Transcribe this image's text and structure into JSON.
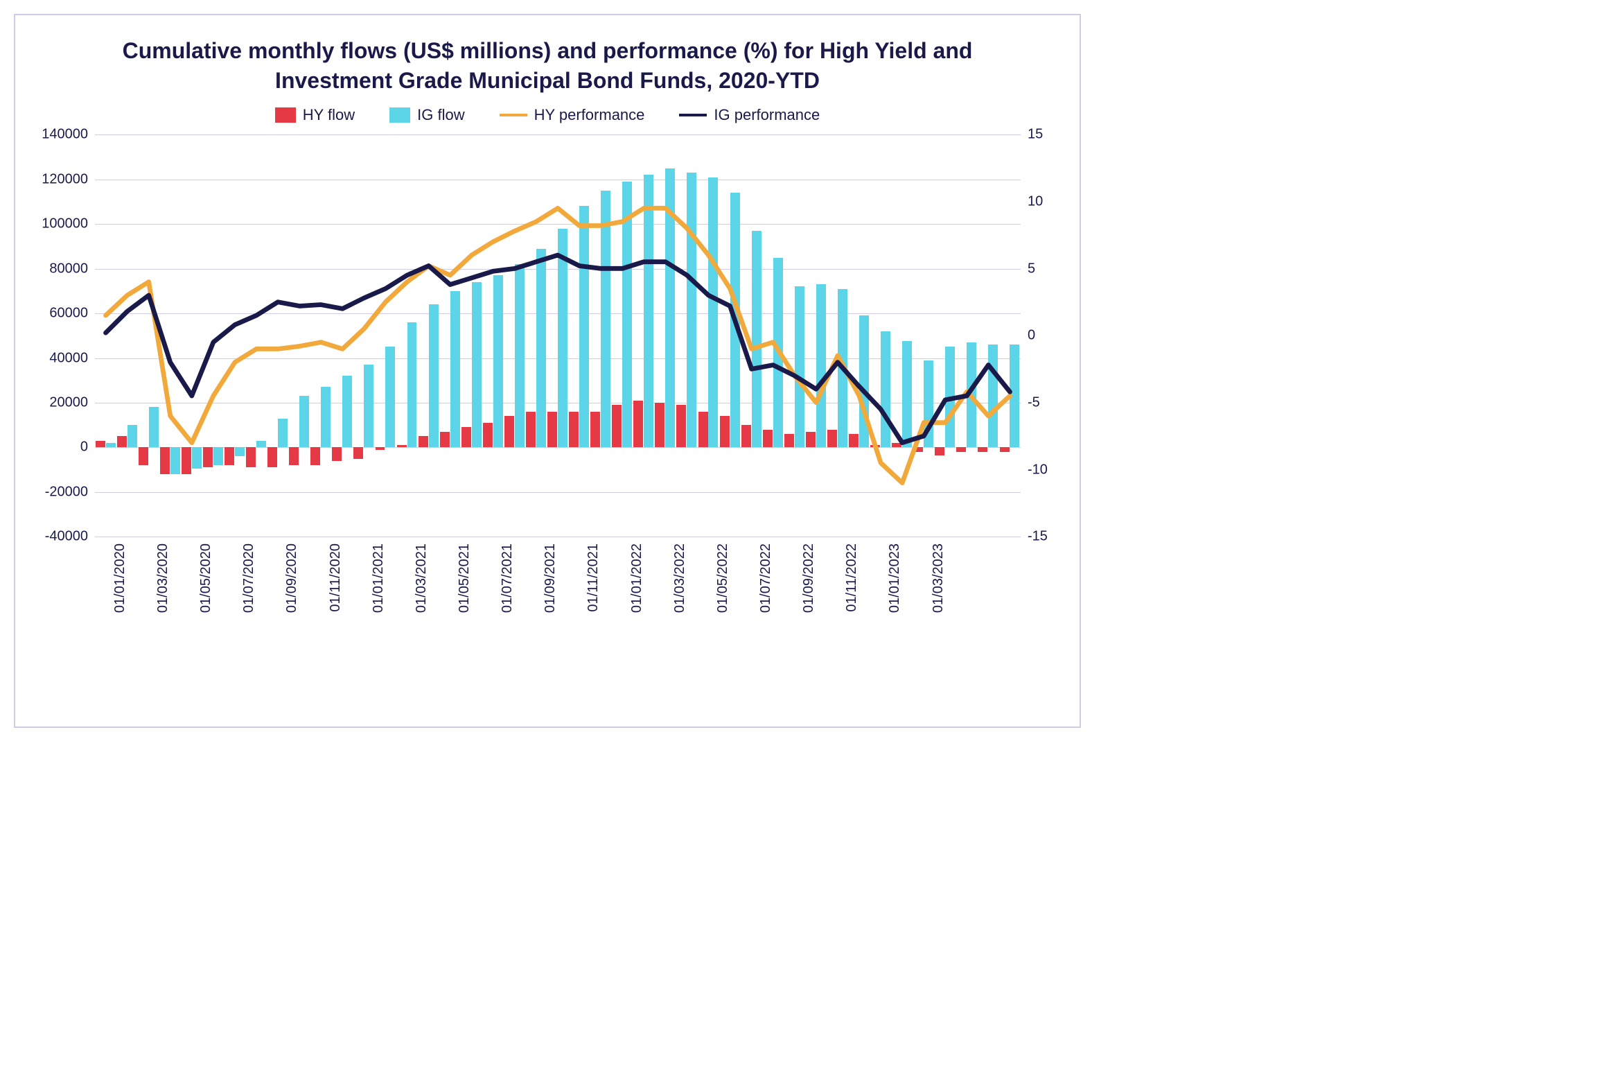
{
  "chart": {
    "type": "bar+line",
    "title": "Cumulative monthly flows (US$ millions) and performance (%) for High Yield and Investment Grade Municipal Bond Funds, 2020-YTD",
    "title_fontsize": 32,
    "title_color": "#1a1a4a",
    "background_color": "#ffffff",
    "border_color": "#d0cce8",
    "grid_color": "#d0cce8",
    "axis_label_color": "#1a1a4a",
    "axis_label_fontsize": 20,
    "legend_fontsize": 22,
    "y_left": {
      "min": -40000,
      "max": 140000,
      "tick_step": 20000
    },
    "y_right": {
      "min": -15,
      "max": 15,
      "tick_step": 5
    },
    "x_labels": [
      "01/01/2020",
      "01/03/2020",
      "01/05/2020",
      "01/07/2020",
      "01/09/2020",
      "01/11/2020",
      "01/01/2021",
      "01/03/2021",
      "01/05/2021",
      "01/07/2021",
      "01/09/2021",
      "01/11/2021",
      "01/01/2022",
      "01/03/2022",
      "01/05/2022",
      "01/07/2022",
      "01/09/2022",
      "01/11/2022",
      "01/01/2023",
      "01/03/2023"
    ],
    "x_label_every": 2,
    "series": {
      "hy_flow": {
        "label": "HY flow",
        "type": "bar",
        "color": "#e63946",
        "axis": "left",
        "values": [
          3000,
          5000,
          -8000,
          -12000,
          -12000,
          -9000,
          -8000,
          -9000,
          -9000,
          -8000,
          -8000,
          -6000,
          -5000,
          -1000,
          1000,
          5000,
          7000,
          9000,
          11000,
          14000,
          16000,
          16000,
          16000,
          16000,
          19000,
          21000,
          20000,
          19000,
          16000,
          14000,
          10000,
          8000,
          6000,
          7000,
          8000,
          6000,
          1000,
          2000,
          -2000,
          -3500,
          -2000,
          -2000,
          -2000
        ]
      },
      "ig_flow": {
        "label": "IG flow",
        "type": "bar",
        "color": "#5dd5e8",
        "axis": "left",
        "values": [
          2000,
          10000,
          18000,
          -12000,
          -9500,
          -8000,
          -4000,
          3000,
          13000,
          23000,
          27000,
          32000,
          37000,
          45000,
          56000,
          64000,
          70000,
          74000,
          77000,
          82000,
          89000,
          98000,
          108000,
          115000,
          119000,
          122000,
          125000,
          123000,
          121000,
          114000,
          97000,
          85000,
          72000,
          73000,
          71000,
          59000,
          52000,
          47500,
          39000,
          45000,
          47000,
          46000,
          46000
        ]
      },
      "hy_perf": {
        "label": "HY performance",
        "type": "line",
        "color": "#f2a93b",
        "line_width": 4,
        "axis": "right",
        "values": [
          1.5,
          3.0,
          4.0,
          -6.0,
          -8.0,
          -4.5,
          -2.0,
          -1.0,
          -1.0,
          -0.8,
          -0.5,
          -1.0,
          0.5,
          2.5,
          4.0,
          5.2,
          4.5,
          6.0,
          7.0,
          7.8,
          8.5,
          9.5,
          8.2,
          8.2,
          8.5,
          9.5,
          9.5,
          8.0,
          6.0,
          3.5,
          -1.0,
          -0.5,
          -3.0,
          -5.0,
          -1.5,
          -4.5,
          -9.5,
          -11.0,
          -6.5,
          -6.5,
          -4.2,
          -6.0,
          -4.5
        ]
      },
      "ig_perf": {
        "label": "IG performance",
        "type": "line",
        "color": "#1a1a4a",
        "line_width": 4,
        "axis": "right",
        "values": [
          0.2,
          1.8,
          3.0,
          -2.0,
          -4.5,
          -0.5,
          0.8,
          1.5,
          2.5,
          2.2,
          2.3,
          2.0,
          2.8,
          3.5,
          4.5,
          5.2,
          3.8,
          4.3,
          4.8,
          5.0,
          5.5,
          6.0,
          5.2,
          5.0,
          5.0,
          5.5,
          5.5,
          4.5,
          3.0,
          2.2,
          -2.5,
          -2.2,
          -3.0,
          -4.0,
          -2.0,
          -3.8,
          -5.5,
          -8.0,
          -7.5,
          -4.8,
          -4.5,
          -2.2,
          -4.2
        ]
      }
    },
    "n_categories": 43
  }
}
